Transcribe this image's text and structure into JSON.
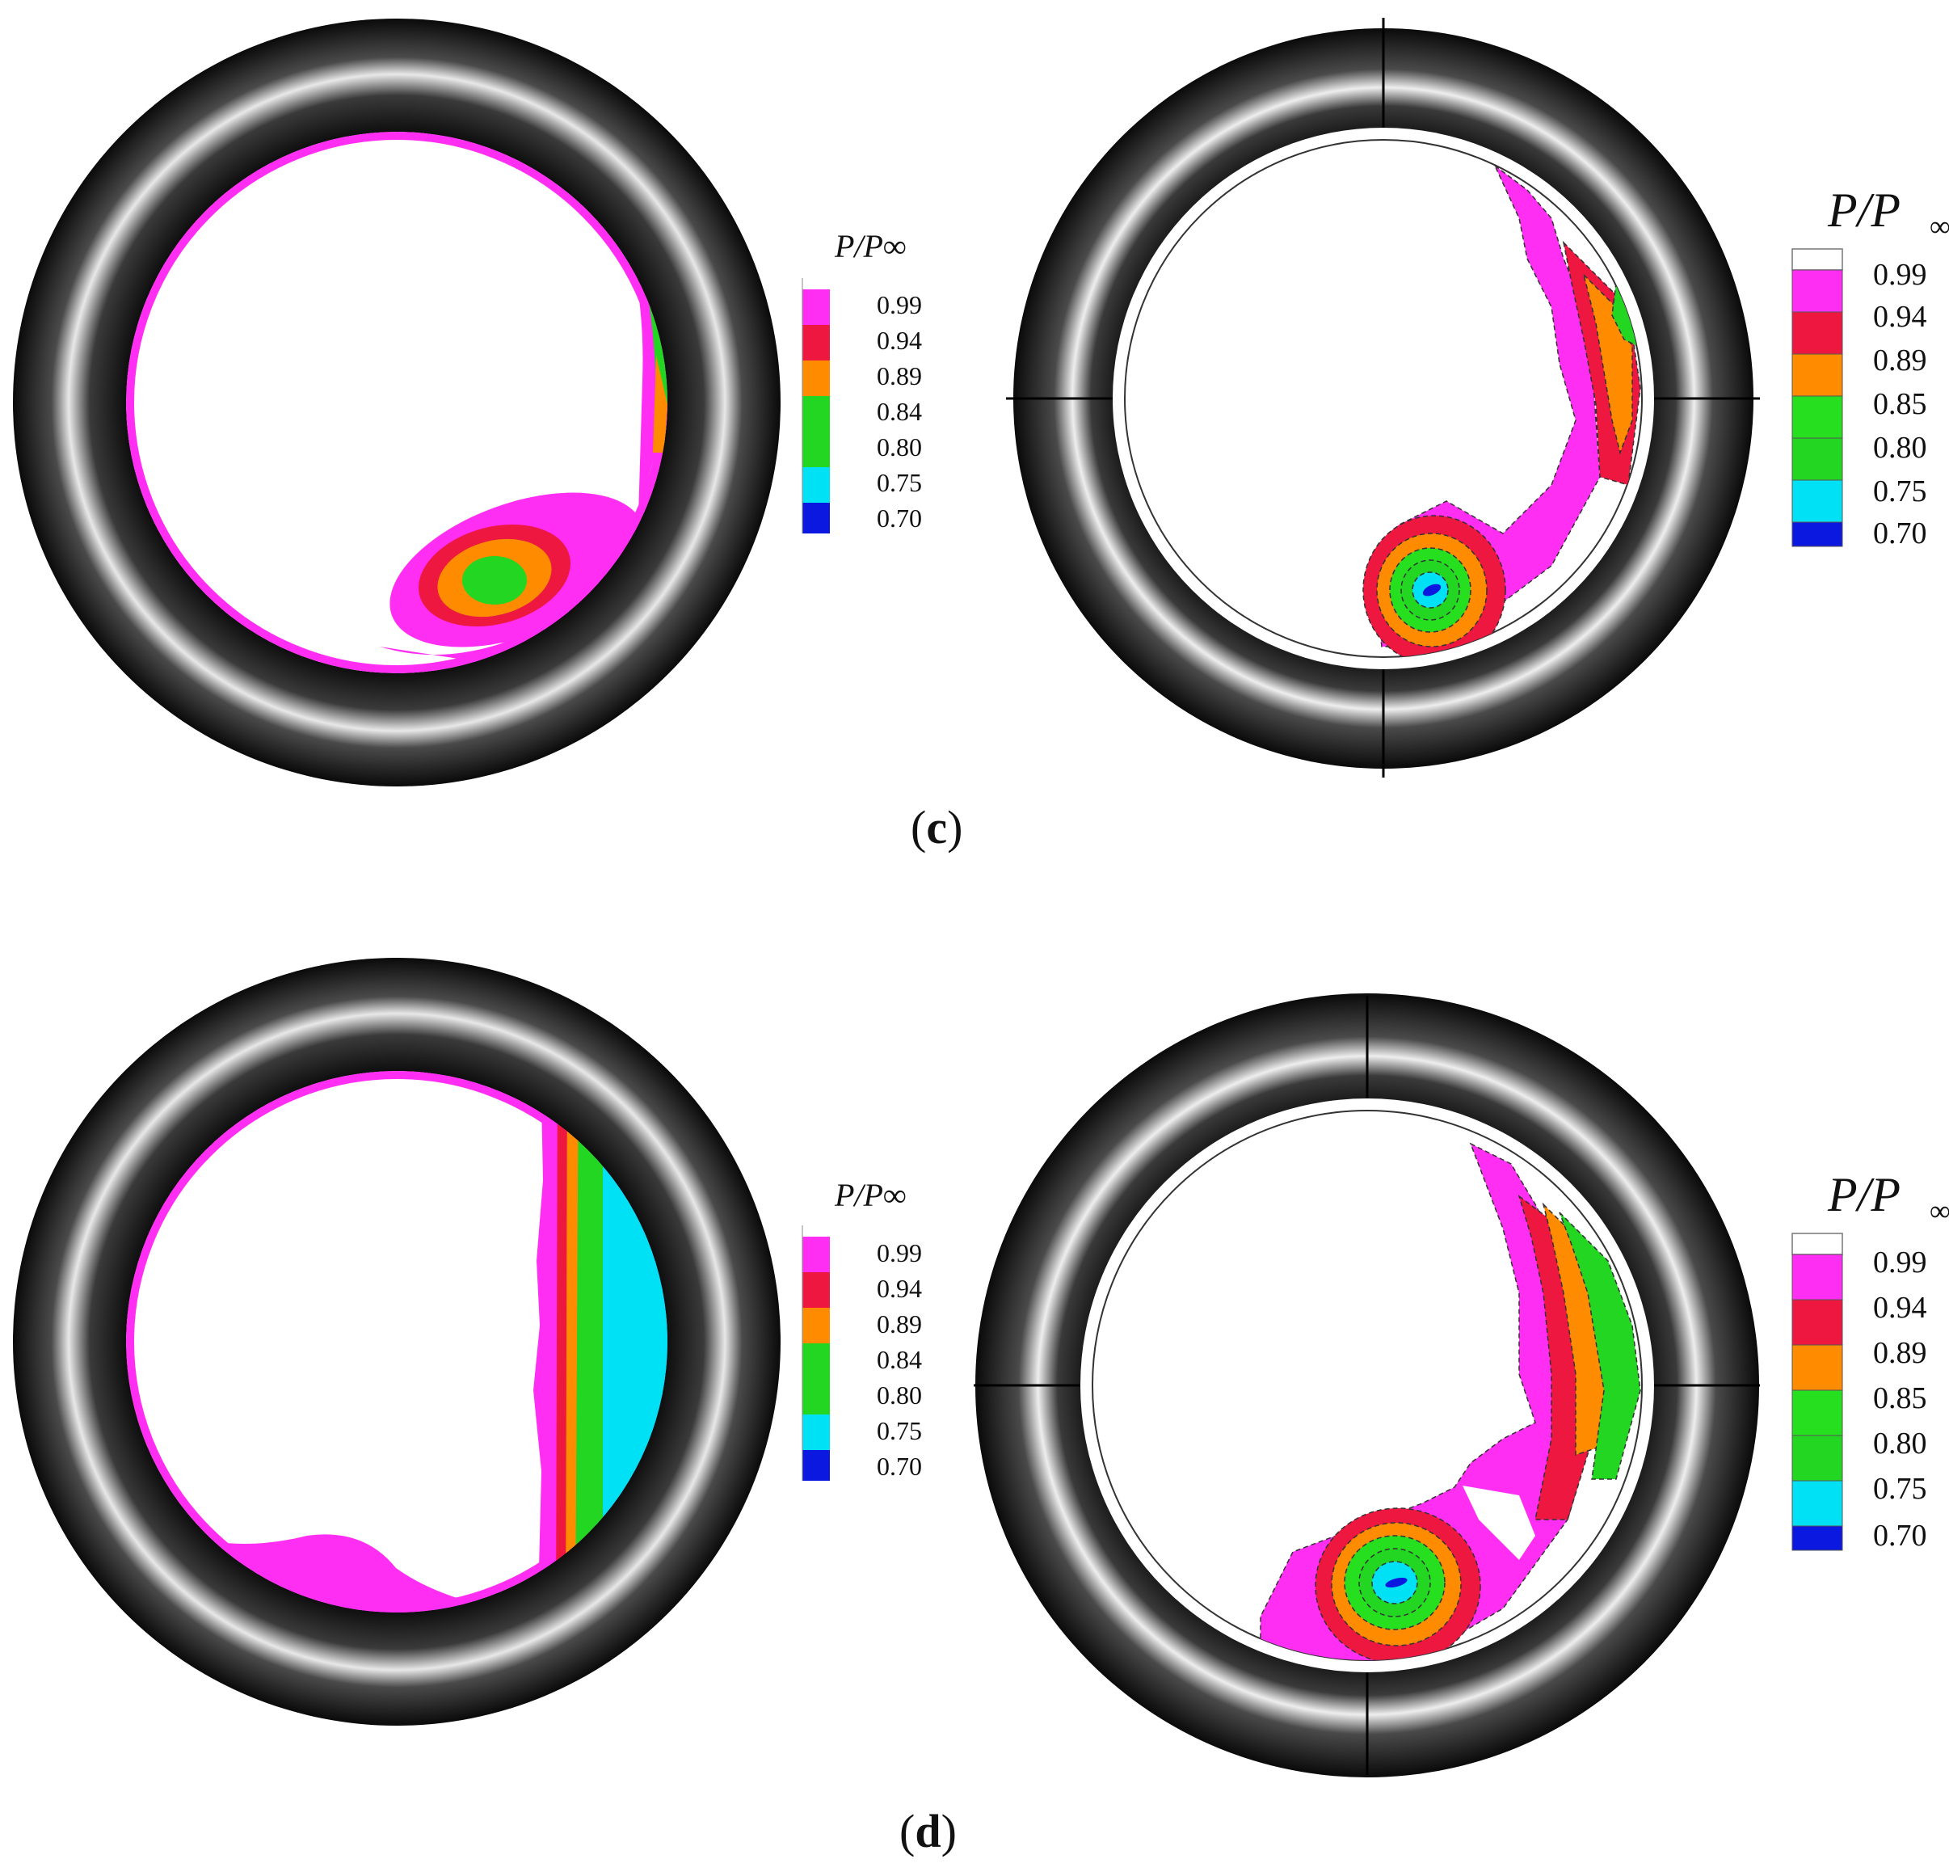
{
  "chart_data": {
    "type": "contour",
    "variable": "P/P∞",
    "legend_title_left": "P/P∞",
    "legend_title_right": "P/P",
    "legend_title_right_sub": "∞",
    "colors": {
      "above_0.99": "#ffffff",
      "0.99": "#ff2ef2",
      "0.94": "#ee1740",
      "0.89": "#ff8c00",
      "0.85": "#26e01f",
      "0.80": "#22d622",
      "0.75": "#00e1f5",
      "0.70": "#0a18e0"
    },
    "panels": [
      {
        "caption": "c",
        "side": "left",
        "legend_levels": [
          "0.99",
          "0.94",
          "0.89",
          "0.84",
          "0.80",
          "0.75",
          "0.70"
        ]
      },
      {
        "caption": "c",
        "side": "right",
        "legend_levels": [
          "0.99",
          "0.94",
          "0.89",
          "0.85",
          "0.80",
          "0.75",
          "0.70"
        ]
      },
      {
        "caption": "d",
        "side": "left",
        "legend_levels": [
          "0.99",
          "0.94",
          "0.89",
          "0.84",
          "0.80",
          "0.75",
          "0.70"
        ]
      },
      {
        "caption": "d",
        "side": "right",
        "legend_levels": [
          "0.99",
          "0.94",
          "0.89",
          "0.85",
          "0.80",
          "0.75",
          "0.70"
        ]
      }
    ]
  },
  "captions": {
    "c": "c",
    "d": "d"
  }
}
